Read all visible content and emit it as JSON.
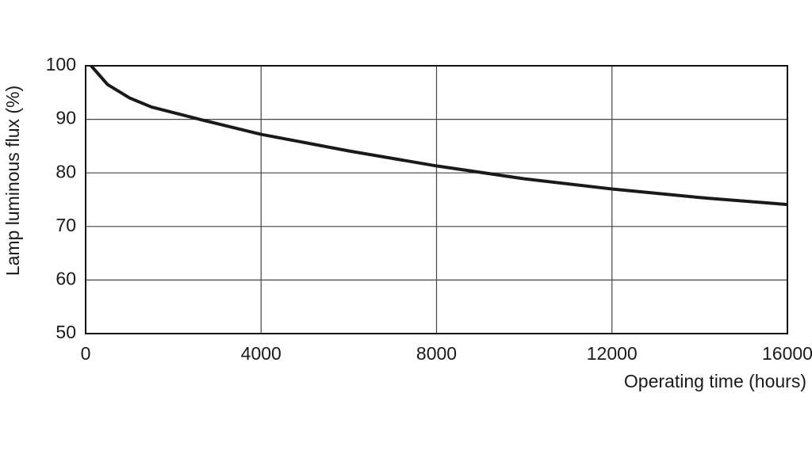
{
  "chart_data": {
    "type": "line",
    "xlabel": "Operating time (hours)",
    "ylabel": "Lamp luminous flux (%)",
    "x": [
      125,
      500,
      1000,
      1500,
      2500,
      4000,
      6000,
      8000,
      10000,
      12000,
      14000,
      16000
    ],
    "series": [
      {
        "color": "#1a1a1a",
        "values": [
          100,
          96.5,
          94,
          92.3,
          90.2,
          87.2,
          84.1,
          81.3,
          78.9,
          77,
          75.4,
          74.1
        ]
      }
    ],
    "xlim": [
      0,
      16000
    ],
    "xticks": [
      0,
      4000,
      8000,
      12000,
      16000
    ],
    "ylim": [
      50,
      100
    ],
    "yticks": [
      50,
      60,
      70,
      80,
      90,
      100
    ],
    "grid": true
  }
}
